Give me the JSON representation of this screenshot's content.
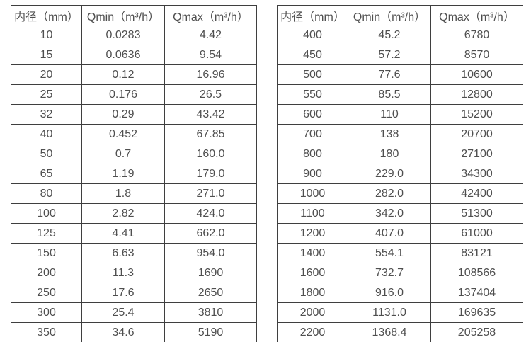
{
  "colors": {
    "background": "#ffffff",
    "border": "#3f3f3f",
    "text": "#4f4f4f"
  },
  "tables": [
    {
      "name": "flow-table-left",
      "headers": [
        "内径（mm）",
        "Qmin（m³/h）",
        "Qmax（m³/h）"
      ],
      "rows": [
        [
          "10",
          "0.0283",
          "4.42"
        ],
        [
          "15",
          "0.0636",
          "9.54"
        ],
        [
          "20",
          "0.12",
          "16.96"
        ],
        [
          "25",
          "0.176",
          "26.5"
        ],
        [
          "32",
          "0.29",
          "43.42"
        ],
        [
          "40",
          "0.452",
          "67.85"
        ],
        [
          "50",
          "0.7",
          "160.0"
        ],
        [
          "65",
          "1.19",
          "179.0"
        ],
        [
          "80",
          "1.8",
          "271.0"
        ],
        [
          "100",
          "2.82",
          "424.0"
        ],
        [
          "125",
          "4.41",
          "662.0"
        ],
        [
          "150",
          "6.63",
          "954.0"
        ],
        [
          "200",
          "11.3",
          "1690"
        ],
        [
          "250",
          "17.6",
          "2650"
        ],
        [
          "300",
          "25.4",
          "3810"
        ],
        [
          "350",
          "34.6",
          "5190"
        ]
      ]
    },
    {
      "name": "flow-table-right",
      "headers": [
        "内径（mm）",
        "Qmin（m³/h）",
        "Qmax（m³/h）"
      ],
      "rows": [
        [
          "400",
          "45.2",
          "6780"
        ],
        [
          "450",
          "57.2",
          "8570"
        ],
        [
          "500",
          "77.6",
          "10600"
        ],
        [
          "550",
          "85.5",
          "12800"
        ],
        [
          "600",
          "110",
          "15200"
        ],
        [
          "700",
          "138",
          "20700"
        ],
        [
          "800",
          "180",
          "27100"
        ],
        [
          "900",
          "229.0",
          "34300"
        ],
        [
          "1000",
          "282.0",
          "42400"
        ],
        [
          "1100",
          "342.0",
          "51300"
        ],
        [
          "1200",
          "407.0",
          "61000"
        ],
        [
          "1400",
          "554.1",
          "83121"
        ],
        [
          "1600",
          "732.7",
          "108566"
        ],
        [
          "1800",
          "916.0",
          "137404"
        ],
        [
          "2000",
          "1131.0",
          "169635"
        ],
        [
          "2200",
          "1368.4",
          "205258"
        ]
      ]
    }
  ]
}
